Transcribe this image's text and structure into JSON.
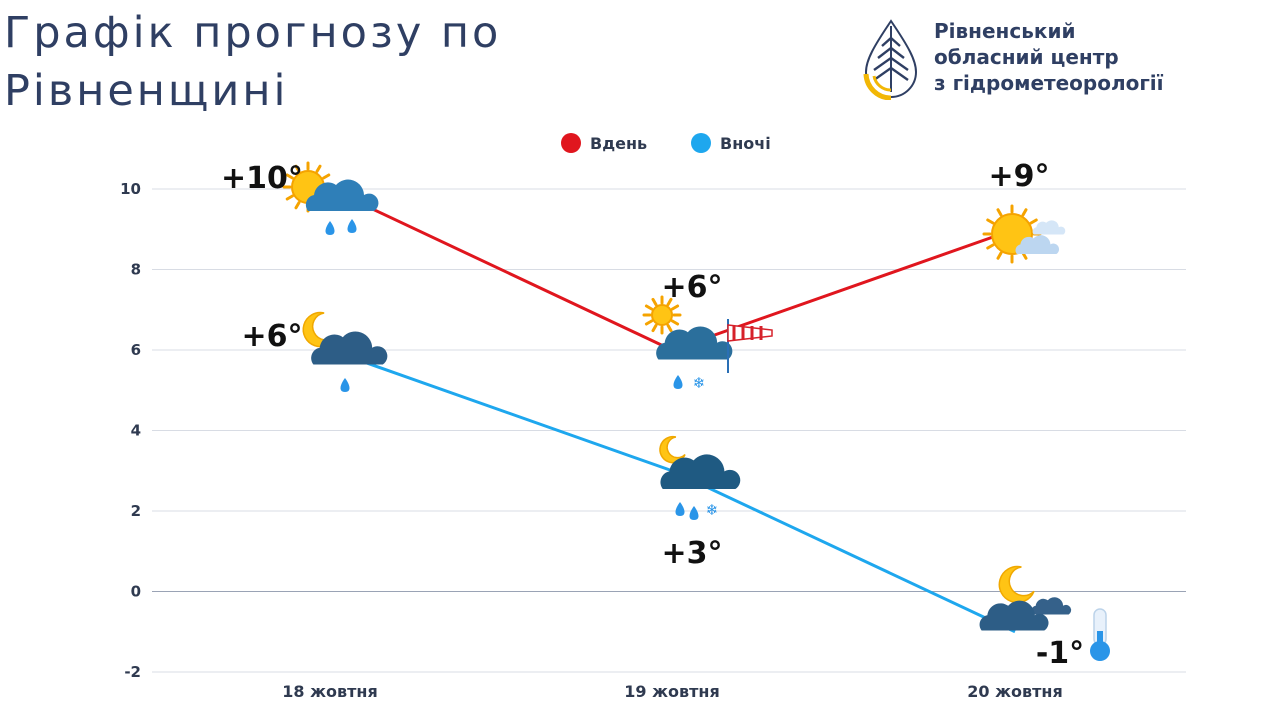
{
  "header": {
    "title": "Графік прогнозу по Рівненщині",
    "org_lines": [
      "Рівненський",
      "обласний центр",
      "з гідрометеорології"
    ],
    "logo_icon": "drop-leaf-logo-icon"
  },
  "colors": {
    "day": "#e0161e",
    "night": "#1ea7ee",
    "grid": "#d8dce4",
    "text": "#2f3f63"
  },
  "chart_data": {
    "type": "line",
    "title": "",
    "xlabel": "",
    "ylabel": "",
    "categories": [
      "18 жовтня",
      "19 жовтня",
      "20 жовтня"
    ],
    "ylim": [
      -2,
      10
    ],
    "yticks": [
      10,
      8,
      6,
      4,
      2,
      0,
      -2
    ],
    "grid": true,
    "legend_position": "top-center",
    "series": [
      {
        "name": "Вдень",
        "color": "#e0161e",
        "values": [
          10,
          6,
          9
        ],
        "labels": [
          "+10°",
          "+6°",
          "+9°"
        ],
        "icons": [
          "sun-cloud-rain-icon",
          "sun-cloud-rain-snow-wind-icon",
          "sun-cloud-icon"
        ]
      },
      {
        "name": "Вночі",
        "color": "#1ea7ee",
        "values": [
          6,
          3,
          -1
        ],
        "labels": [
          "+6°",
          "+3°",
          "-1°"
        ],
        "icons": [
          "moon-cloud-rain-icon",
          "moon-cloud-rain-snow-icon",
          "moon-cloud-frost-icon"
        ]
      }
    ]
  }
}
